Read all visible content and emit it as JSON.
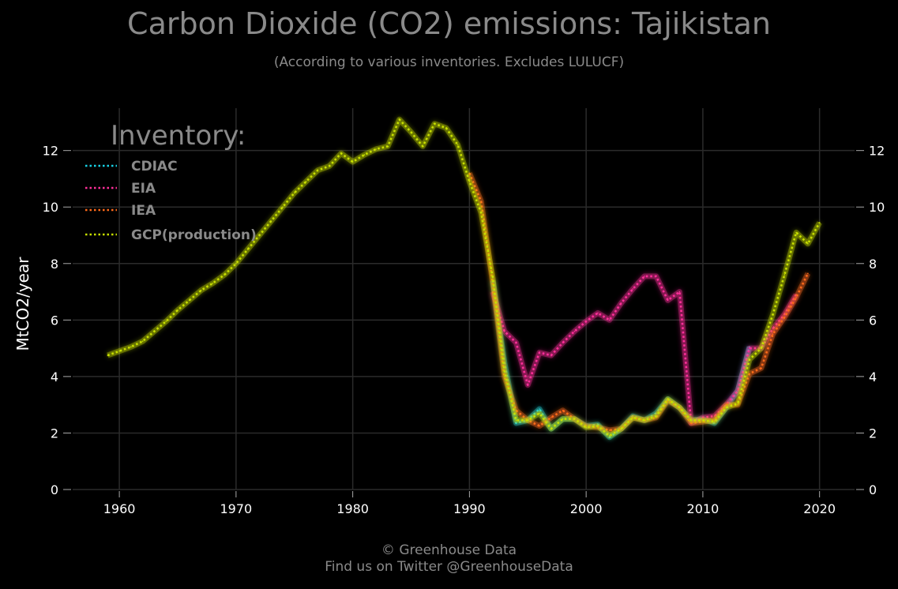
{
  "chart_data": {
    "type": "line",
    "title": "Carbon Dioxide (CO2) emissions: Tajikistan",
    "subtitle": "(According to various inventories. Excludes LULUCF)",
    "xlabel": "",
    "ylabel": "MtCO2/year",
    "xlim": [
      1956,
      2023
    ],
    "ylim": [
      0,
      13.5
    ],
    "x_ticks": [
      1960,
      1970,
      1980,
      1990,
      2000,
      2010,
      2020
    ],
    "y_ticks": [
      0,
      2,
      4,
      6,
      8,
      10,
      12
    ],
    "grid": true,
    "legend_title": "Inventory:",
    "legend_position": "top-left",
    "series": [
      {
        "name": "CDIAC",
        "color": "#19d3e6",
        "x": [
          1992,
          1993,
          1994,
          1995,
          1996,
          1997,
          1998,
          1999,
          2000,
          2001,
          2002,
          2003,
          2004,
          2005,
          2006,
          2007,
          2008,
          2009,
          2010,
          2011,
          2012,
          2013,
          2014
        ],
        "values": [
          7.4,
          4.5,
          2.35,
          2.45,
          2.85,
          2.15,
          2.5,
          2.5,
          2.25,
          2.3,
          1.85,
          2.15,
          2.6,
          2.45,
          2.7,
          3.2,
          2.9,
          2.45,
          2.5,
          2.35,
          2.9,
          3.5,
          5.05
        ]
      },
      {
        "name": "EIA",
        "color": "#ff2f9b",
        "x": [
          1992,
          1993,
          1994,
          1995,
          1996,
          1997,
          1998,
          1999,
          2000,
          2001,
          2002,
          2003,
          2004,
          2005,
          2006,
          2007,
          2008,
          2009,
          2010,
          2011,
          2012,
          2013,
          2014,
          2015,
          2016,
          2017,
          2018
        ],
        "values": [
          7.0,
          5.6,
          5.2,
          3.7,
          4.85,
          4.75,
          5.2,
          5.6,
          5.95,
          6.25,
          6.0,
          6.6,
          7.1,
          7.55,
          7.55,
          6.7,
          7.0,
          2.35,
          2.55,
          2.6,
          3.0,
          3.5,
          5.0,
          5.0,
          5.7,
          6.2,
          6.9
        ]
      },
      {
        "name": "IEA",
        "color": "#ff6a1a",
        "x": [
          1990,
          1991,
          1992,
          1993,
          1994,
          1995,
          1996,
          1997,
          1998,
          1999,
          2000,
          2001,
          2002,
          2003,
          2004,
          2005,
          2006,
          2007,
          2008,
          2009,
          2010,
          2011,
          2012,
          2013,
          2014,
          2015,
          2016,
          2017,
          2018,
          2019
        ],
        "values": [
          11.2,
          10.2,
          7.3,
          4.0,
          2.8,
          2.45,
          2.25,
          2.55,
          2.8,
          2.5,
          2.25,
          2.2,
          2.1,
          2.15,
          2.55,
          2.45,
          2.55,
          3.15,
          2.9,
          2.35,
          2.4,
          2.45,
          3.0,
          3.0,
          4.1,
          4.3,
          5.5,
          6.1,
          6.8,
          7.65
        ]
      },
      {
        "name": "GCP(production)",
        "color": "#c8e000",
        "x": [
          1959,
          1960,
          1961,
          1962,
          1963,
          1964,
          1965,
          1966,
          1967,
          1968,
          1969,
          1970,
          1971,
          1972,
          1973,
          1974,
          1975,
          1976,
          1977,
          1978,
          1979,
          1980,
          1981,
          1982,
          1983,
          1984,
          1985,
          1986,
          1987,
          1988,
          1989,
          1990,
          1991,
          1992,
          1993,
          1994,
          1995,
          1996,
          1997,
          1998,
          1999,
          2000,
          2001,
          2002,
          2003,
          2004,
          2005,
          2006,
          2007,
          2008,
          2009,
          2010,
          2011,
          2012,
          2013,
          2014,
          2015,
          2016,
          2017,
          2018,
          2019,
          2020
        ],
        "values": [
          4.75,
          4.9,
          5.05,
          5.25,
          5.6,
          5.95,
          6.35,
          6.7,
          7.05,
          7.3,
          7.6,
          8.0,
          8.5,
          9.0,
          9.5,
          10.0,
          10.5,
          10.9,
          11.3,
          11.45,
          11.9,
          11.6,
          11.85,
          12.05,
          12.15,
          13.1,
          12.65,
          12.15,
          12.95,
          12.8,
          12.2,
          10.9,
          9.8,
          7.5,
          4.2,
          2.45,
          2.45,
          2.7,
          2.15,
          2.5,
          2.5,
          2.2,
          2.25,
          1.9,
          2.15,
          2.55,
          2.45,
          2.6,
          3.2,
          2.9,
          2.45,
          2.45,
          2.4,
          2.9,
          3.05,
          4.6,
          5.0,
          6.2,
          7.6,
          9.1,
          8.7,
          9.45
        ]
      }
    ]
  },
  "footer": {
    "line1": "© Greenhouse Data",
    "line2": "Find us on Twitter @GreenhouseData"
  }
}
